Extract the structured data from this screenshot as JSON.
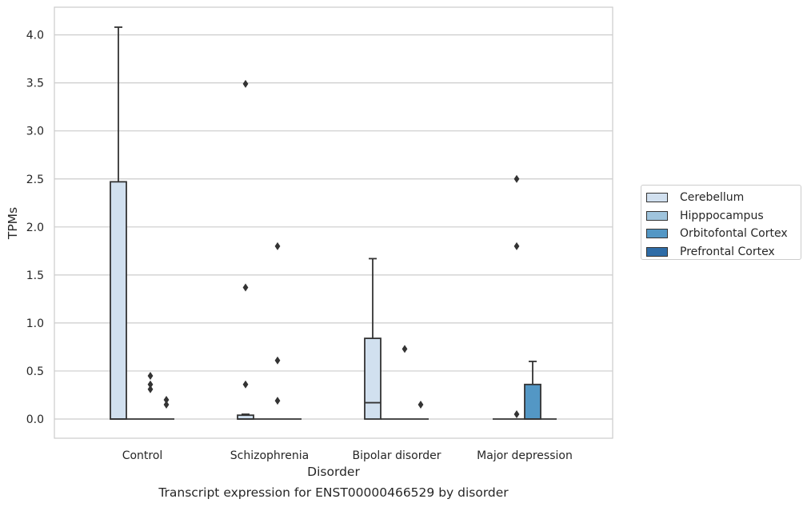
{
  "caption": "Transcript expression for ENST00000466529 by disorder",
  "chart_data": {
    "type": "box",
    "xlabel": "Disorder",
    "ylabel": "TPMs",
    "ylim": [
      -0.2,
      4.3
    ],
    "yticks": [
      "0.0",
      "0.5",
      "1.0",
      "1.5",
      "2.0",
      "2.5",
      "3.0",
      "3.5",
      "4.0"
    ],
    "grid": true,
    "legend_position": "outside-right",
    "categories": [
      "Control",
      "Schizophrenia",
      "Bipolar disorder",
      "Major depression"
    ],
    "series": [
      {
        "name": "Cerebellum",
        "color": "#d1e0ef",
        "boxes": [
          {
            "q1": 0,
            "median": 0,
            "q3": 2.47,
            "whisker_low": 0,
            "whisker_high": 4.08,
            "outliers": []
          },
          {
            "q1": 0,
            "median": 0,
            "q3": 0.04,
            "whisker_low": 0,
            "whisker_high": 0.05,
            "outliers": [
              3.49,
              1.37,
              0.36
            ]
          },
          {
            "q1": 0,
            "median": 0.17,
            "q3": 0.84,
            "whisker_low": 0,
            "whisker_high": 1.67,
            "outliers": []
          },
          {
            "q1": 0,
            "median": 0,
            "q3": 0,
            "whisker_low": 0,
            "whisker_high": 0,
            "outliers": []
          }
        ]
      },
      {
        "name": "Hipppocampus",
        "color": "#9fc4dd",
        "boxes": [
          {
            "q1": 0,
            "median": 0,
            "q3": 0,
            "whisker_low": 0,
            "whisker_high": 0,
            "outliers": []
          },
          {
            "q1": 0,
            "median": 0,
            "q3": 0,
            "whisker_low": 0,
            "whisker_high": 0,
            "outliers": []
          },
          {
            "q1": 0,
            "median": 0,
            "q3": 0,
            "whisker_low": 0,
            "whisker_high": 0,
            "outliers": []
          },
          {
            "q1": 0,
            "median": 0,
            "q3": 0,
            "whisker_low": 0,
            "whisker_high": 0,
            "outliers": [
              2.5,
              1.8,
              0.05
            ]
          }
        ]
      },
      {
        "name": "Orbitofontal Cortex",
        "color": "#5397c5",
        "boxes": [
          {
            "q1": 0,
            "median": 0,
            "q3": 0,
            "whisker_low": 0,
            "whisker_high": 0,
            "outliers": [
              0.45,
              0.36,
              0.31
            ]
          },
          {
            "q1": 0,
            "median": 0,
            "q3": 0,
            "whisker_low": 0,
            "whisker_high": 0,
            "outliers": [
              1.8,
              0.61,
              0.19
            ]
          },
          {
            "q1": 0,
            "median": 0,
            "q3": 0,
            "whisker_low": 0,
            "whisker_high": 0,
            "outliers": [
              0.73
            ]
          },
          {
            "q1": 0,
            "median": 0,
            "q3": 0.36,
            "whisker_low": 0,
            "whisker_high": 0.6,
            "outliers": []
          }
        ]
      },
      {
        "name": "Prefrontal Cortex",
        "color": "#2e6ca7",
        "boxes": [
          {
            "q1": 0,
            "median": 0,
            "q3": 0,
            "whisker_low": 0,
            "whisker_high": 0,
            "outliers": [
              0.2,
              0.15
            ]
          },
          {
            "q1": 0,
            "median": 0,
            "q3": 0,
            "whisker_low": 0,
            "whisker_high": 0,
            "outliers": []
          },
          {
            "q1": 0,
            "median": 0,
            "q3": 0,
            "whisker_low": 0,
            "whisker_high": 0,
            "outliers": [
              0.15
            ]
          },
          {
            "q1": 0,
            "median": 0,
            "q3": 0,
            "whisker_low": 0,
            "whisker_high": 0,
            "outliers": []
          }
        ]
      }
    ]
  }
}
